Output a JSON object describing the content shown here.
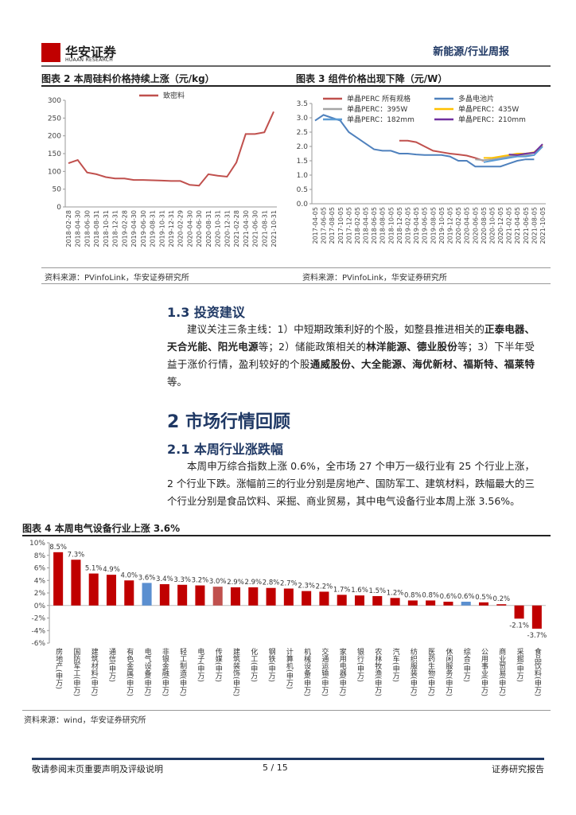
{
  "header": {
    "logo_cn": "华安证券",
    "logo_en": "HUAAN RESEARCH",
    "report_type": "新能源/行业周报"
  },
  "figures": [
    {
      "title": "图表 2 本周硅料价格持续上涨（元/kg）",
      "chart": {
        "type": "line",
        "categories": [
          "2018-02-28",
          "2018-04-30",
          "2018-06-30",
          "2018-08-31",
          "2018-10-31",
          "2018-12-31",
          "2019-02-28",
          "2019-04-30",
          "2019-06-30",
          "2019-08-31",
          "2019-10-31",
          "2019-12-31",
          "2020-02-29",
          "2020-04-30",
          "2020-06-30",
          "2020-08-31",
          "2020-10-31",
          "2020-12-31",
          "2021-02-28",
          "2021-04-30",
          "2021-06-30",
          "2021-08-31",
          "2021-10-31"
        ],
        "series": [
          {
            "name": "致密料",
            "color": "#c0504d",
            "values": [
              123,
              132,
              97,
              92,
              84,
              80,
              80,
              76,
              76,
              75,
              74,
              73,
              73,
              62,
              60,
              92,
              88,
              85,
              125,
              205,
              205,
              210,
              268
            ]
          }
        ],
        "ylim": [
          0,
          300
        ],
        "yticks": [
          0,
          50,
          100,
          150,
          200,
          250,
          300
        ],
        "grid": false,
        "legend": "top"
      },
      "source": "资料来源：PVinfoLink，华安证券研究所"
    },
    {
      "title": "图表 3 组件价格出现下降（元/W）",
      "chart": {
        "type": "line",
        "categories": [
          "2017-04-05",
          "2017-06-05",
          "2017-08-05",
          "2017-10-05",
          "2017-12-05",
          "2018-02-05",
          "2018-04-05",
          "2018-06-05",
          "2018-08-05",
          "2018-10-05",
          "2018-12-05",
          "2019-02-05",
          "2019-04-05",
          "2019-06-05",
          "2019-08-05",
          "2019-10-05",
          "2019-12-05",
          "2020-02-05",
          "2020-04-05",
          "2020-06-05",
          "2020-08-05",
          "2020-10-05",
          "2020-12-05",
          "2021-02-05",
          "2021-04-05",
          "2021-06-05",
          "2021-08-05",
          "2021-10-05"
        ],
        "series": [
          {
            "name": "单晶PERC 所有规格",
            "color": "#c0504d",
            "values": [
              null,
              null,
              null,
              null,
              null,
              null,
              null,
              null,
              null,
              null,
              2.2,
              2.2,
              2.15,
              2.0,
              1.85,
              1.8,
              1.75,
              1.72,
              1.68,
              1.6,
              1.5,
              null,
              null,
              null,
              null,
              null,
              null,
              null
            ]
          },
          {
            "name": "多晶电池片",
            "color": "#4f81bd",
            "values": [
              2.9,
              3.1,
              3.0,
              2.9,
              2.5,
              2.3,
              2.1,
              1.9,
              1.85,
              1.85,
              1.75,
              1.75,
              1.72,
              1.7,
              1.7,
              1.7,
              1.65,
              1.5,
              1.5,
              1.3,
              1.3,
              1.3,
              1.3,
              1.4,
              1.5,
              1.55,
              1.55,
              null
            ]
          },
          {
            "name": "单晶PERC：395W",
            "color": "#a5a5a5",
            "values": [
              null,
              null,
              null,
              null,
              null,
              null,
              null,
              null,
              null,
              null,
              null,
              null,
              null,
              null,
              null,
              null,
              null,
              null,
              null,
              1.55,
              1.52,
              1.55,
              1.6,
              1.65,
              1.7,
              1.7,
              1.7,
              2.0
            ]
          },
          {
            "name": "单晶PERC：435W",
            "color": "#ffc000",
            "values": [
              null,
              null,
              null,
              null,
              null,
              null,
              null,
              null,
              null,
              null,
              null,
              null,
              null,
              null,
              null,
              null,
              null,
              null,
              null,
              null,
              1.6,
              1.6,
              1.65,
              1.7,
              1.75,
              1.75,
              1.8,
              2.05
            ]
          },
          {
            "name": "单晶PERC：182mm",
            "color": "#5b9bd5",
            "values": [
              null,
              null,
              null,
              null,
              null,
              null,
              null,
              null,
              null,
              null,
              null,
              null,
              null,
              null,
              null,
              null,
              null,
              null,
              null,
              null,
              1.45,
              1.5,
              1.55,
              1.6,
              1.65,
              1.65,
              1.7,
              2.0
            ]
          },
          {
            "name": "单晶PERC：210mm",
            "color": "#7030a0",
            "values": [
              null,
              null,
              null,
              null,
              null,
              null,
              null,
              null,
              null,
              null,
              null,
              null,
              null,
              null,
              null,
              null,
              null,
              null,
              null,
              null,
              null,
              null,
              null,
              1.72,
              1.7,
              1.75,
              1.78,
              2.08
            ]
          }
        ],
        "ylim": [
          0,
          3.5
        ],
        "yticks": [
          {
            "value": 0,
            "label": "0.0"
          },
          0.5,
          {
            "value": 1,
            "label": "1.0"
          },
          1.5,
          {
            "value": 2,
            "label": "2.0"
          },
          2.5,
          {
            "value": 3,
            "label": "3.0"
          },
          3.5
        ],
        "grid": false,
        "legend": "top"
      },
      "source": "资料来源：PVinfoLink，华安证券研究所"
    },
    {
      "title": "图表 4 本周电气设备行业上涨 3.6%",
      "chart": {
        "type": "bar",
        "categories": [
          "房地产(申万)",
          "国防军工(申万)",
          "建筑材料(申万)",
          "通信(申万)",
          "有色金属(申万)",
          "电气设备(申万)",
          "非银金融(申万)",
          "轻工制造(申万)",
          "电子(申万)",
          "传媒(申万)",
          "建筑装饰(申万)",
          "化工(申万)",
          "钢铁(申万)",
          "计算机(申万)",
          "机械设备(申万)",
          "交通运输(申万)",
          "家用电器(申万)",
          "银行(申万)",
          "农林牧渔(申万)",
          "汽车(申万)",
          "纺织服装(申万)",
          "医药生物(申万)",
          "休闲服务(申万)",
          "综合(申万)",
          "公用事业(申万)",
          "商业贸易(申万)",
          "采掘(申万)",
          "食品饮料(申万)"
        ],
        "values": [
          8.5,
          7.3,
          5.1,
          4.9,
          4.0,
          3.6,
          3.4,
          3.3,
          3.2,
          3.0,
          2.9,
          2.9,
          2.8,
          2.7,
          2.3,
          2.2,
          1.7,
          1.6,
          1.5,
          1.2,
          0.8,
          0.8,
          0.6,
          0.6,
          0.5,
          0.2,
          -2.1,
          -3.7
        ],
        "value_labels": [
          "8.5%",
          "7.3%",
          "5.1%",
          "4.9%",
          "4.0%",
          "3.6%",
          "3.4%",
          "3.3%",
          "3.2%",
          "3.0%",
          "2.9%",
          "2.9%",
          "2.8%",
          "2.7%",
          "2.3%",
          "2.2%",
          "1.7%",
          "1.6%",
          "1.5%",
          "1.2%",
          "0.8%",
          "0.8%",
          "0.6%",
          "0.6%",
          "0.5%",
          "0.2%",
          "-2.1%",
          "-3.7%"
        ],
        "colors": [
          "#c00000",
          "#c00000",
          "#c00000",
          "#c00000",
          "#c00000",
          "#5b8fd0",
          "#c00000",
          "#c00000",
          "#c00000",
          "#c0504d",
          "#c00000",
          "#c00000",
          "#c00000",
          "#c00000",
          "#c00000",
          "#c00000",
          "#c00000",
          "#c00000",
          "#c00000",
          "#c00000",
          "#c00000",
          "#c00000",
          "#c00000",
          "#5b8fd0",
          "#c00000",
          "#c00000",
          "#c00000",
          "#c00000"
        ],
        "ylim": [
          -6,
          10
        ],
        "yticks": [
          {
            "value": -6,
            "label": "-6%"
          },
          {
            "value": -4,
            "label": "-4%"
          },
          {
            "value": -2,
            "label": "-2%"
          },
          {
            "value": 0,
            "label": "0%"
          },
          {
            "value": 2,
            "label": "2%"
          },
          {
            "value": 4,
            "label": "4%"
          },
          {
            "value": 6,
            "label": "6%"
          },
          {
            "value": 8,
            "label": "8%"
          },
          {
            "value": 10,
            "label": "10%"
          }
        ],
        "grid": false
      },
      "source": "资料来源：wind，华安证券研究所"
    }
  ],
  "sections": [
    {
      "heading": "1.3 投资建议",
      "paragraph": [
        {
          "text": "建议关注三条主线：1）中短期政策利好的个股，如整县推进相关的",
          "bold": false
        },
        {
          "text": "正泰电器、天合光能、阳光电源",
          "bold": true
        },
        {
          "text": "等；2）储能政策相关的",
          "bold": false
        },
        {
          "text": "林洋能源、德业股份",
          "bold": true
        },
        {
          "text": "等；3）下半年受益于涨价行情，盈利较好的个股",
          "bold": false
        },
        {
          "text": "通威股份、大全能源、海优新材、福斯特、福莱特",
          "bold": true
        },
        {
          "text": "等。",
          "bold": false
        }
      ]
    },
    {
      "heading": "2 市场行情回顾"
    },
    {
      "heading": "2.1 本周行业涨跌幅",
      "paragraph": [
        {
          "text": "本周申万综合指数上涨 0.6%，全市场 27 个申万一级行业有 25 个行业上涨，2 个行业下跌。涨幅前三的行业分别是房地产、国防军工、建筑材料，跌幅最大的三个行业分别是食品饮料、采掘、商业贸易，其中电气设备行业本周上涨 3.56%。",
          "bold": false
        }
      ]
    }
  ],
  "footer": {
    "left": "敬请参阅末页重要声明及评级说明",
    "page": "5 / 15",
    "right": "证券研究报告"
  }
}
